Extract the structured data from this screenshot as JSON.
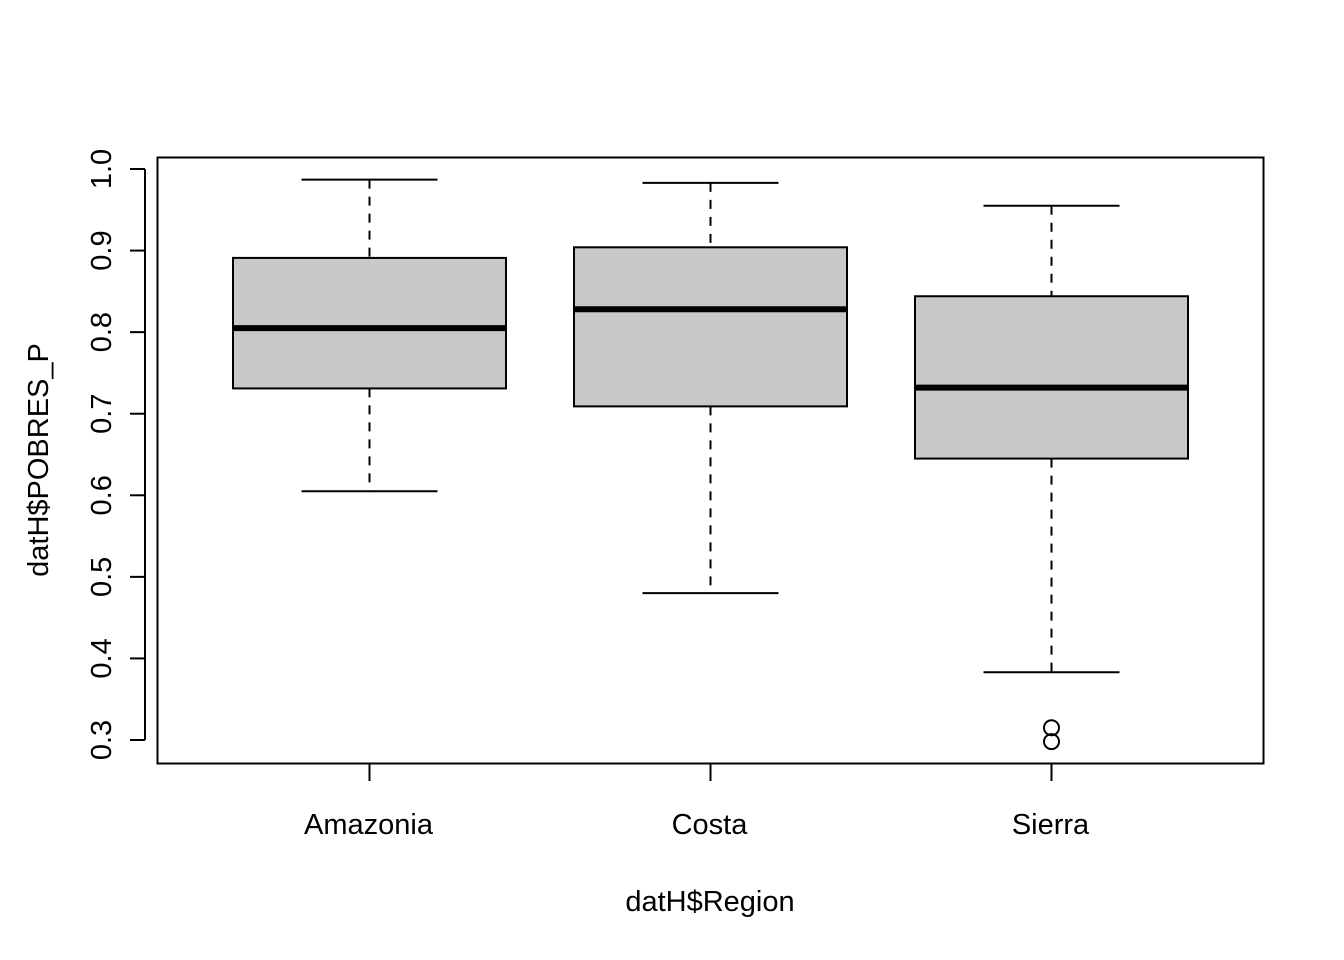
{
  "chart_data": {
    "type": "boxplot",
    "xlabel": "datH$Region",
    "ylabel": "datH$POBRES_P",
    "ylim": [
      0.27,
      1.015
    ],
    "yticks": [
      "0.3",
      "0.4",
      "0.5",
      "0.6",
      "0.7",
      "0.8",
      "0.9",
      "1.0"
    ],
    "categories": [
      "Amazonia",
      "Costa",
      "Sierra"
    ],
    "box_color": "#c8c8c8",
    "boxes": [
      {
        "name": "Amazonia",
        "whisker_low": 0.605,
        "q1": 0.731,
        "median": 0.805,
        "q3": 0.891,
        "whisker_high": 0.987,
        "outliers": []
      },
      {
        "name": "Costa",
        "whisker_low": 0.48,
        "q1": 0.709,
        "median": 0.828,
        "q3": 0.904,
        "whisker_high": 0.983,
        "outliers": []
      },
      {
        "name": "Sierra",
        "whisker_low": 0.383,
        "q1": 0.645,
        "median": 0.732,
        "q3": 0.844,
        "whisker_high": 0.955,
        "outliers": [
          0.315,
          0.298
        ]
      }
    ]
  }
}
